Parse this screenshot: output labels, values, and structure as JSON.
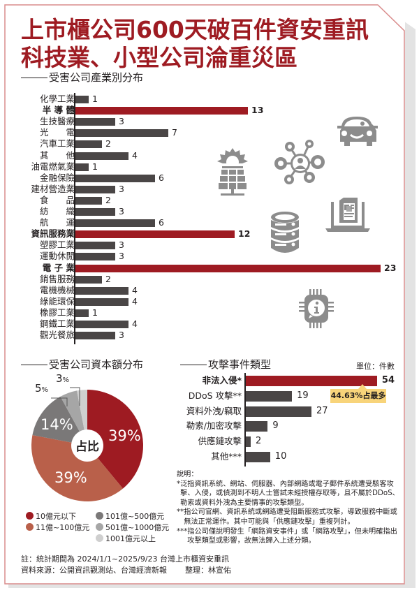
{
  "header": {
    "title_line1": "上市櫃公司600天破百件資安重訊",
    "title_line2": "科技業、小型公司淪重災區",
    "subtitle": "受害公司產業別分布"
  },
  "colors": {
    "highlight": "#9e1b22",
    "bar": "#4a4646",
    "callout": "#f8d47a",
    "icon": "#8c8c8c",
    "frame": "#d98c8c"
  },
  "chart_data": [
    {
      "type": "bar",
      "orientation": "horizontal",
      "title": "受害公司產業別分布",
      "categories": [
        "化學工業",
        "半導體",
        "生技醫療",
        "光電",
        "汽車工業",
        "其他",
        "油電燃氣業",
        "金融保險",
        "建材營造業",
        "食品",
        "紡織",
        "航運",
        "資訊服務業",
        "塑膠工業",
        "運動休閒",
        "電子業",
        "銷售服務",
        "電機機械",
        "綠能環保",
        "橡膠工業",
        "鋼鐵工業",
        "觀光餐旅"
      ],
      "values": [
        1,
        13,
        3,
        7,
        2,
        4,
        1,
        6,
        3,
        2,
        3,
        6,
        12,
        3,
        3,
        23,
        2,
        4,
        4,
        1,
        4,
        3
      ],
      "highlighted": [
        "半導體",
        "資訊服務業",
        "電子業"
      ],
      "xlabel": "",
      "ylabel": ""
    },
    {
      "type": "pie",
      "title": "受害公司資本額分布",
      "center_label": "占比",
      "categories": [
        "10億元以下",
        "11億~100億元",
        "101億~500億元",
        "501億~1000億元",
        "1001億元以上"
      ],
      "values": [
        39,
        39,
        14,
        5,
        3
      ],
      "unit": "%",
      "colors": [
        "#9e1b22",
        "#b9604a",
        "#7a7878",
        "#a6a6a6",
        "#cfcfcf"
      ]
    },
    {
      "type": "bar",
      "orientation": "horizontal",
      "title": "攻擊事件類型",
      "unit": "單位：件數",
      "categories": [
        "非法入侵*",
        "DDoS 攻擊**",
        "資料外洩/竊取",
        "勒索/加密攻擊",
        "供應鏈攻擊",
        "其他***"
      ],
      "values": [
        54,
        19,
        27,
        9,
        2,
        10
      ],
      "highlighted": [
        "非法入侵*"
      ],
      "annotation": "44.63%占最多"
    }
  ],
  "industry": {
    "rows": [
      {
        "label": "化學工業",
        "value": "1",
        "n": 1,
        "bold": false
      },
      {
        "label": "半 導 體",
        "value": "13",
        "n": 13,
        "bold": true
      },
      {
        "label": "生技醫療",
        "value": "3",
        "n": 3,
        "bold": false
      },
      {
        "label": "光　　電",
        "value": "7",
        "n": 7,
        "bold": false
      },
      {
        "label": "汽車工業",
        "value": "2",
        "n": 2,
        "bold": false
      },
      {
        "label": "其　　他",
        "value": "4",
        "n": 4,
        "bold": false
      },
      {
        "label": "油電燃氣業",
        "value": "1",
        "n": 1,
        "bold": false
      },
      {
        "label": "金融保險",
        "value": "6",
        "n": 6,
        "bold": false
      },
      {
        "label": "建材營造業",
        "value": "3",
        "n": 3,
        "bold": false
      },
      {
        "label": "食　　品",
        "value": "2",
        "n": 2,
        "bold": false
      },
      {
        "label": "紡　　織",
        "value": "3",
        "n": 3,
        "bold": false
      },
      {
        "label": "航　　運",
        "value": "6",
        "n": 6,
        "bold": false
      },
      {
        "label": "資訊服務業",
        "value": "12",
        "n": 12,
        "bold": true
      },
      {
        "label": "塑膠工業",
        "value": "3",
        "n": 3,
        "bold": false
      },
      {
        "label": "運動休閒",
        "value": "3",
        "n": 3,
        "bold": false
      },
      {
        "label": "電 子 業",
        "value": "23",
        "n": 23,
        "bold": true
      },
      {
        "label": "銷售服務",
        "value": "2",
        "n": 2,
        "bold": false
      },
      {
        "label": "電機機械",
        "value": "4",
        "n": 4,
        "bold": false
      },
      {
        "label": "綠能環保",
        "value": "4",
        "n": 4,
        "bold": false
      },
      {
        "label": "橡膠工業",
        "value": "1",
        "n": 1,
        "bold": false
      },
      {
        "label": "鋼鐵工業",
        "value": "4",
        "n": 4,
        "bold": false
      },
      {
        "label": "觀光餐旅",
        "value": "3",
        "n": 3,
        "bold": false
      }
    ],
    "icons": [
      "solar-panel-icon",
      "network-user-icon",
      "car-icon",
      "database-icon",
      "laptop-document-icon",
      "chip-info-icon"
    ]
  },
  "capital": {
    "title": "受害公司資本額分布",
    "center": "占比",
    "pcts": {
      "a": "39%",
      "b": "39%",
      "c": "14%",
      "d": "5",
      "e": "3"
    },
    "pct_sign": "%",
    "legend": [
      "10億元以下",
      "11億~100億元",
      "101億~500億元",
      "501億~1000億元",
      "1001億元以上"
    ]
  },
  "attacks": {
    "title": "攻擊事件類型",
    "unit": "單位：件數",
    "rows": [
      {
        "label": "非法入侵*",
        "value": "54",
        "n": 54,
        "bold": true
      },
      {
        "label": "DDoS 攻擊**",
        "value": "19",
        "n": 19,
        "bold": false
      },
      {
        "label": "資料外洩/竊取",
        "value": "27",
        "n": 27,
        "bold": false
      },
      {
        "label": "勒索/加密攻擊",
        "value": "9",
        "n": 9,
        "bold": false
      },
      {
        "label": "供應鏈攻擊",
        "value": "2",
        "n": 2,
        "bold": false
      },
      {
        "label": "其他***",
        "value": "10",
        "n": 10,
        "bold": false
      }
    ],
    "callout": "44.63%占最多"
  },
  "notes": {
    "heading": "說明：",
    "items": [
      {
        "mark": "*",
        "text": "泛指資訊系統、網站、伺服器、內部網路或電子郵件系統遭受駭客攻擊、入侵，或偵測到不明人士嘗試未經授權存取等，且不屬於DDoS、勒索或資料外洩為主要情事的攻擊類型。"
      },
      {
        "mark": "**",
        "text": "指公司官網、資訊系統或網路遭受阻斷服務式攻擊，導致服務中斷或無法正常運作。其中可能與「供應鏈攻擊」重複列計。"
      },
      {
        "mark": "***",
        "text": "指公司僅說明發生「網路資安事件」或「網路攻擊」，但未明確指出攻擊類型或影響，故無法歸入上述分類。"
      }
    ]
  },
  "footer": {
    "note": "註：統計期間為 2024/1/1~2025/9/23 台灣上市櫃資安重訊",
    "source": "資料來源：公開資訊觀測站、台灣經濟新報",
    "editor": "整理：林宣佑"
  }
}
